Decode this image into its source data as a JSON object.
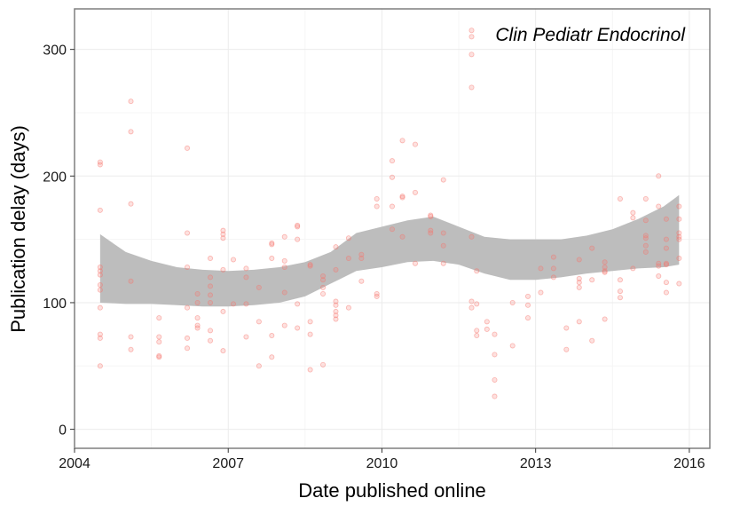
{
  "chart_data": {
    "type": "scatter",
    "title": "",
    "annotation": "Clin Pediatr Endocrinol",
    "xlabel": "Date published online",
    "ylabel": "Publication delay (days)",
    "xlim": [
      2004.0,
      2016.4
    ],
    "ylim": [
      -15,
      332
    ],
    "x_ticks": [
      2004,
      2007,
      2010,
      2013,
      2016
    ],
    "y_ticks": [
      0,
      100,
      200,
      300
    ],
    "grid": true,
    "legend": "none",
    "colors": {
      "points": "#f8766d",
      "ribbon": "#bdbdbd",
      "grid_major": "#ebebeb",
      "grid_minor": "#f5f5f5",
      "panel_border": "#7f7f7f",
      "background": "#ffffff"
    },
    "smooth": {
      "x": [
        2004.5,
        2005.0,
        2005.5,
        2006.0,
        2006.5,
        2007.0,
        2007.5,
        2008.0,
        2008.5,
        2009.0,
        2009.5,
        2010.0,
        2010.5,
        2011.0,
        2011.5,
        2012.0,
        2012.5,
        2013.0,
        2013.5,
        2014.0,
        2014.5,
        2015.0,
        2015.5,
        2015.8
      ],
      "upper": [
        154,
        140,
        133,
        128,
        126,
        125,
        126,
        128,
        132,
        140,
        155,
        160,
        165,
        168,
        160,
        152,
        150,
        150,
        150,
        153,
        158,
        166,
        176,
        185
      ],
      "lower": [
        100,
        99,
        99,
        98,
        97,
        97,
        98,
        100,
        105,
        115,
        125,
        128,
        132,
        133,
        130,
        123,
        118,
        118,
        120,
        123,
        125,
        127,
        128,
        130
      ]
    },
    "points": [
      [
        2004.5,
        211
      ],
      [
        2004.5,
        209
      ],
      [
        2004.5,
        173
      ],
      [
        2004.5,
        128
      ],
      [
        2004.5,
        125
      ],
      [
        2004.5,
        122
      ],
      [
        2004.5,
        114
      ],
      [
        2004.5,
        110
      ],
      [
        2004.5,
        96
      ],
      [
        2004.5,
        75
      ],
      [
        2004.5,
        72
      ],
      [
        2004.5,
        50
      ],
      [
        2005.1,
        259
      ],
      [
        2005.1,
        235
      ],
      [
        2005.1,
        178
      ],
      [
        2005.1,
        117
      ],
      [
        2005.1,
        73
      ],
      [
        2005.1,
        63
      ],
      [
        2005.65,
        88
      ],
      [
        2005.65,
        73
      ],
      [
        2005.65,
        69
      ],
      [
        2005.65,
        58
      ],
      [
        2005.65,
        57
      ],
      [
        2006.2,
        222
      ],
      [
        2006.2,
        155
      ],
      [
        2006.2,
        128
      ],
      [
        2006.2,
        96
      ],
      [
        2006.2,
        72
      ],
      [
        2006.2,
        64
      ],
      [
        2006.4,
        107
      ],
      [
        2006.4,
        100
      ],
      [
        2006.4,
        88
      ],
      [
        2006.4,
        82
      ],
      [
        2006.4,
        80
      ],
      [
        2006.65,
        135
      ],
      [
        2006.65,
        120
      ],
      [
        2006.65,
        113
      ],
      [
        2006.65,
        106
      ],
      [
        2006.65,
        100
      ],
      [
        2006.65,
        78
      ],
      [
        2006.65,
        70
      ],
      [
        2006.9,
        157
      ],
      [
        2006.9,
        154
      ],
      [
        2006.9,
        151
      ],
      [
        2006.9,
        126
      ],
      [
        2006.9,
        93
      ],
      [
        2006.9,
        62
      ],
      [
        2007.1,
        134
      ],
      [
        2007.1,
        99
      ],
      [
        2007.35,
        127
      ],
      [
        2007.35,
        120
      ],
      [
        2007.35,
        99
      ],
      [
        2007.35,
        73
      ],
      [
        2007.6,
        112
      ],
      [
        2007.6,
        85
      ],
      [
        2007.6,
        50
      ],
      [
        2007.85,
        147
      ],
      [
        2007.85,
        146
      ],
      [
        2007.85,
        135
      ],
      [
        2007.85,
        74
      ],
      [
        2007.85,
        57
      ],
      [
        2008.1,
        152
      ],
      [
        2008.1,
        133
      ],
      [
        2008.1,
        128
      ],
      [
        2008.1,
        108
      ],
      [
        2008.1,
        82
      ],
      [
        2008.35,
        161
      ],
      [
        2008.35,
        160
      ],
      [
        2008.35,
        150
      ],
      [
        2008.35,
        99
      ],
      [
        2008.35,
        80
      ],
      [
        2008.6,
        130
      ],
      [
        2008.6,
        129
      ],
      [
        2008.6,
        85
      ],
      [
        2008.6,
        75
      ],
      [
        2008.6,
        47
      ],
      [
        2008.85,
        121
      ],
      [
        2008.85,
        118
      ],
      [
        2008.85,
        112
      ],
      [
        2008.85,
        107
      ],
      [
        2008.85,
        51
      ],
      [
        2009.1,
        144
      ],
      [
        2009.1,
        126
      ],
      [
        2009.1,
        101
      ],
      [
        2009.1,
        98
      ],
      [
        2009.1,
        93
      ],
      [
        2009.1,
        90
      ],
      [
        2009.1,
        87
      ],
      [
        2009.35,
        151
      ],
      [
        2009.35,
        135
      ],
      [
        2009.35,
        96
      ],
      [
        2009.6,
        138
      ],
      [
        2009.6,
        135
      ],
      [
        2009.6,
        117
      ],
      [
        2009.9,
        182
      ],
      [
        2009.9,
        176
      ],
      [
        2009.9,
        107
      ],
      [
        2009.9,
        105
      ],
      [
        2010.2,
        212
      ],
      [
        2010.2,
        199
      ],
      [
        2010.2,
        176
      ],
      [
        2010.2,
        158
      ],
      [
        2010.4,
        228
      ],
      [
        2010.4,
        184
      ],
      [
        2010.4,
        183
      ],
      [
        2010.4,
        152
      ],
      [
        2010.65,
        225
      ],
      [
        2010.65,
        187
      ],
      [
        2010.65,
        131
      ],
      [
        2010.95,
        169
      ],
      [
        2010.95,
        168
      ],
      [
        2010.95,
        157
      ],
      [
        2010.95,
        155
      ],
      [
        2011.2,
        197
      ],
      [
        2011.2,
        155
      ],
      [
        2011.2,
        145
      ],
      [
        2011.2,
        131
      ],
      [
        2011.75,
        315
      ],
      [
        2011.75,
        310
      ],
      [
        2011.75,
        296
      ],
      [
        2011.75,
        270
      ],
      [
        2011.75,
        152
      ],
      [
        2011.75,
        101
      ],
      [
        2011.75,
        96
      ],
      [
        2011.85,
        125
      ],
      [
        2011.85,
        99
      ],
      [
        2011.85,
        78
      ],
      [
        2011.85,
        74
      ],
      [
        2012.05,
        85
      ],
      [
        2012.05,
        79
      ],
      [
        2012.2,
        75
      ],
      [
        2012.2,
        59
      ],
      [
        2012.2,
        39
      ],
      [
        2012.2,
        26
      ],
      [
        2012.55,
        100
      ],
      [
        2012.55,
        66
      ],
      [
        2012.85,
        105
      ],
      [
        2012.85,
        98
      ],
      [
        2012.85,
        88
      ],
      [
        2013.1,
        127
      ],
      [
        2013.1,
        108
      ],
      [
        2013.35,
        136
      ],
      [
        2013.35,
        127
      ],
      [
        2013.35,
        120
      ],
      [
        2013.6,
        80
      ],
      [
        2013.6,
        63
      ],
      [
        2013.85,
        134
      ],
      [
        2013.85,
        119
      ],
      [
        2013.85,
        116
      ],
      [
        2013.85,
        112
      ],
      [
        2013.85,
        85
      ],
      [
        2014.1,
        143
      ],
      [
        2014.1,
        118
      ],
      [
        2014.1,
        70
      ],
      [
        2014.35,
        132
      ],
      [
        2014.35,
        128
      ],
      [
        2014.35,
        125
      ],
      [
        2014.35,
        124
      ],
      [
        2014.35,
        87
      ],
      [
        2014.65,
        182
      ],
      [
        2014.65,
        118
      ],
      [
        2014.65,
        109
      ],
      [
        2014.65,
        104
      ],
      [
        2014.9,
        171
      ],
      [
        2014.9,
        167
      ],
      [
        2014.9,
        127
      ],
      [
        2015.15,
        182
      ],
      [
        2015.15,
        165
      ],
      [
        2015.15,
        153
      ],
      [
        2015.15,
        151
      ],
      [
        2015.15,
        145
      ],
      [
        2015.15,
        140
      ],
      [
        2015.4,
        200
      ],
      [
        2015.4,
        176
      ],
      [
        2015.4,
        131
      ],
      [
        2015.4,
        129
      ],
      [
        2015.4,
        121
      ],
      [
        2015.55,
        166
      ],
      [
        2015.55,
        150
      ],
      [
        2015.55,
        143
      ],
      [
        2015.55,
        131
      ],
      [
        2015.55,
        130
      ],
      [
        2015.55,
        116
      ],
      [
        2015.55,
        108
      ],
      [
        2015.8,
        176
      ],
      [
        2015.8,
        166
      ],
      [
        2015.8,
        155
      ],
      [
        2015.8,
        152
      ],
      [
        2015.8,
        150
      ],
      [
        2015.8,
        135
      ],
      [
        2015.8,
        115
      ]
    ]
  }
}
